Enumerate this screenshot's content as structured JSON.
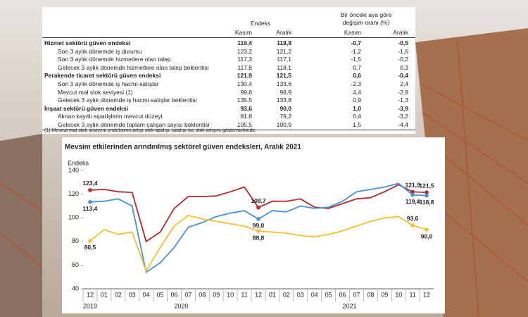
{
  "table": {
    "header": {
      "group1": "Endeks",
      "group2_line1": "Bir önceki aya göre",
      "group2_line2": "değişim oranı (%)",
      "columns": [
        "Kasım",
        "Aralık",
        "Kasım",
        "Aralık"
      ]
    },
    "rows": [
      {
        "bold": true,
        "cells": [
          "Hizmet sektörü güven endeksi",
          "119,4",
          "118,8",
          "-0,7",
          "-0,5"
        ]
      },
      {
        "bold": false,
        "cells": [
          "Son 3 aylık dönemde iş durumu",
          "123,2",
          "121,2",
          "-1,2",
          "-1,6"
        ]
      },
      {
        "bold": false,
        "cells": [
          "Son 3 aylık dönemde hizmetlere olan talep",
          "117,3",
          "117,1",
          "-1,5",
          "-0,2"
        ]
      },
      {
        "bold": false,
        "cells": [
          "Gelecek 3 aylık dönemde hizmetlere olan talep beklentisi",
          "117,8",
          "118,1",
          "0,7",
          "0,3"
        ]
      },
      {
        "bold": true,
        "cells": [
          "Perakende ticaret sektörü güven endeksi",
          "121,9",
          "121,5",
          "0,6",
          "-0,4"
        ]
      },
      {
        "bold": false,
        "cells": [
          "Son 3 aylık dönemde iş hacmi-satışlar",
          "130,4",
          "133,6",
          "-2,3",
          "2,4"
        ]
      },
      {
        "bold": false,
        "cells": [
          "Mevcut mal stok seviyesi (1)",
          "99,8",
          "96,9",
          "4,4",
          "-2,9"
        ]
      },
      {
        "bold": false,
        "cells": [
          "Gelecek 3 aylık dönemde iş hacmi-satışlar beklentisi",
          "135,5",
          "133,8",
          "0,9",
          "-1,3"
        ]
      },
      {
        "bold": true,
        "cells": [
          "İnşaat sektörü güven endeksi",
          "93,6",
          "90,0",
          "1,0",
          "-3,9"
        ]
      },
      {
        "bold": false,
        "cells": [
          "Alınan kayıtlı siparişlerin mevcut düzeyi",
          "81,8",
          "79,2",
          "0,4",
          "-3,2"
        ]
      },
      {
        "bold": false,
        "cells": [
          "Gelecek 3 aylık dönemde toplam çalışan sayısı beklentisi",
          "105,5",
          "100,9",
          "1,5",
          "-4,4"
        ]
      }
    ],
    "footnote": "(1) Mevcut mal stok seviyesi endeksinin artışı stok azalışı, azalışı ise stok artışını göstermektedir."
  },
  "chart_data": {
    "type": "line",
    "title": "Mevsim etkilerinden arındırılmış sektörel güven endeksleri, Aralık 2021",
    "ylabel": "Endeks",
    "categories": [
      "12",
      "01",
      "02",
      "03",
      "04",
      "05",
      "06",
      "07",
      "08",
      "09",
      "10",
      "11",
      "12",
      "01",
      "02",
      "03",
      "04",
      "05",
      "06",
      "07",
      "08",
      "09",
      "10",
      "11",
      "12"
    ],
    "years": [
      "2019",
      "2020",
      "2021"
    ],
    "ylim": [
      40,
      140
    ],
    "yticks": [
      40,
      60,
      80,
      100,
      120,
      140
    ],
    "grid": false,
    "series": [
      {
        "color": "#b5262e",
        "values": [
          123.4,
          124,
          122,
          121.5,
          80,
          88,
          108,
          118,
          118,
          118.5,
          122,
          126,
          108.7,
          114,
          114,
          116,
          109,
          108,
          112,
          116,
          117,
          122,
          128,
          121.9,
          121.5
        ],
        "value_labels": [
          "123,4",
          null,
          null,
          null,
          null,
          null,
          null,
          null,
          null,
          null,
          null,
          null,
          "108,7",
          null,
          null,
          null,
          null,
          null,
          null,
          null,
          null,
          null,
          null,
          "121,9",
          "121,5"
        ]
      },
      {
        "color": "#4a90d9",
        "values": [
          113.4,
          114,
          116,
          110,
          54,
          62,
          75,
          92,
          96,
          101,
          104,
          106,
          99.0,
          106,
          105,
          110,
          108,
          109,
          114,
          122,
          124,
          126,
          129,
          119.4,
          118.8
        ],
        "value_labels": [
          "113,4",
          null,
          null,
          null,
          null,
          null,
          null,
          null,
          null,
          null,
          null,
          null,
          "99,0",
          null,
          null,
          null,
          null,
          null,
          null,
          null,
          null,
          null,
          null,
          "119,4",
          "118,8"
        ]
      },
      {
        "color": "#f2c12e",
        "values": [
          80.5,
          90,
          86,
          88,
          55,
          75,
          93,
          102,
          99,
          97,
          95,
          93,
          88.8,
          88,
          87,
          85,
          84,
          86,
          89,
          93,
          97,
          100,
          101,
          93.6,
          90.0
        ],
        "value_labels": [
          "80,5",
          null,
          null,
          null,
          null,
          null,
          null,
          null,
          null,
          null,
          null,
          null,
          "88,8",
          null,
          null,
          null,
          null,
          null,
          null,
          null,
          null,
          null,
          null,
          "93,6",
          "90,0"
        ]
      }
    ]
  }
}
